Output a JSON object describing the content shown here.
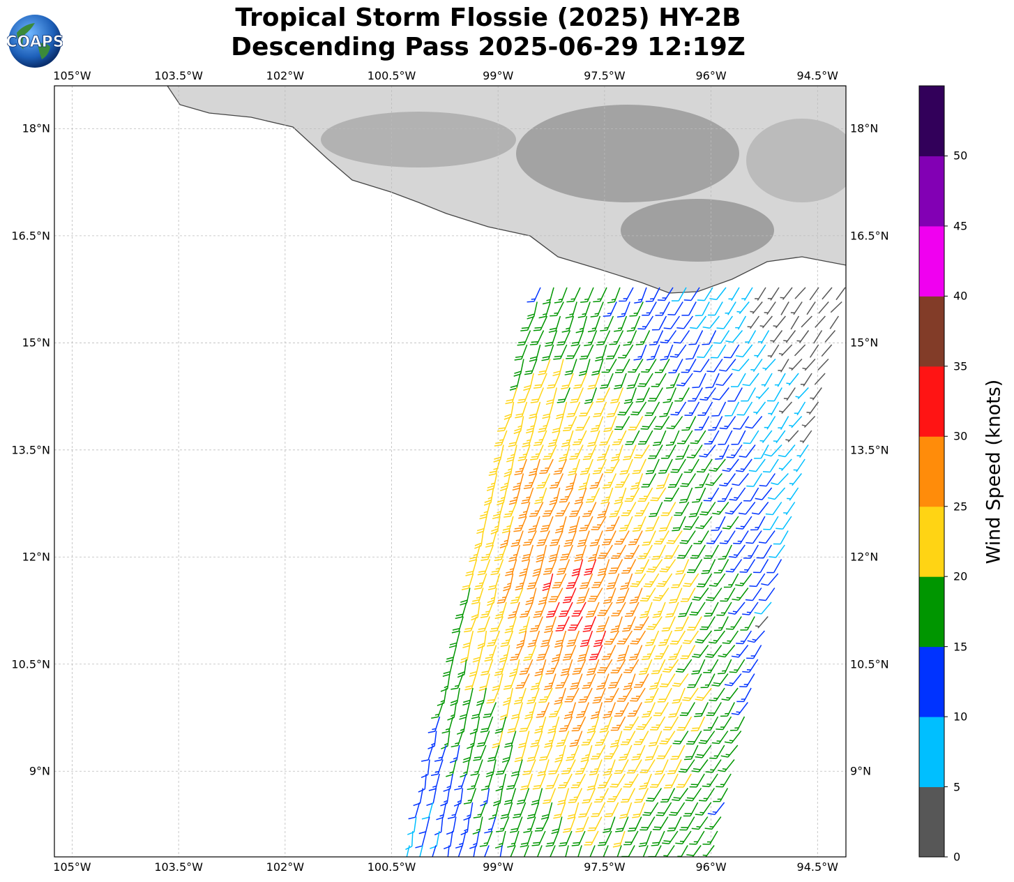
{
  "title_line1": "Tropical Storm Flossie (2025) HY-2B",
  "title_line2": "Descending Pass 2025-06-29 12:19Z",
  "logo_text": "COAPS",
  "lon_ticks": [
    "105°W",
    "103.5°W",
    "102°W",
    "100.5°W",
    "99°W",
    "97.5°W",
    "96°W",
    "94.5°W"
  ],
  "lat_ticks": [
    "18°N",
    "16.5°N",
    "15°N",
    "13.5°N",
    "12°N",
    "10.5°N",
    "9°N"
  ],
  "colorbar": {
    "label": "Wind Speed (knots)",
    "ticks": [
      "0",
      "5",
      "10",
      "15",
      "20",
      "25",
      "30",
      "35",
      "40",
      "45",
      "50"
    ],
    "colors": [
      "#575757",
      "#00bfff",
      "#0033ff",
      "#009600",
      "#ffd414",
      "#ff8c0a",
      "#ff1414",
      "#823c28",
      "#f000f0",
      "#8200b4",
      "#32005a"
    ]
  },
  "map": {
    "lon_range": [
      -105.25,
      -94.1
    ],
    "lat_range": [
      7.8,
      18.6
    ],
    "colors": {
      "land_edge": "#444444",
      "grid": "#bbbbbb"
    }
  }
}
